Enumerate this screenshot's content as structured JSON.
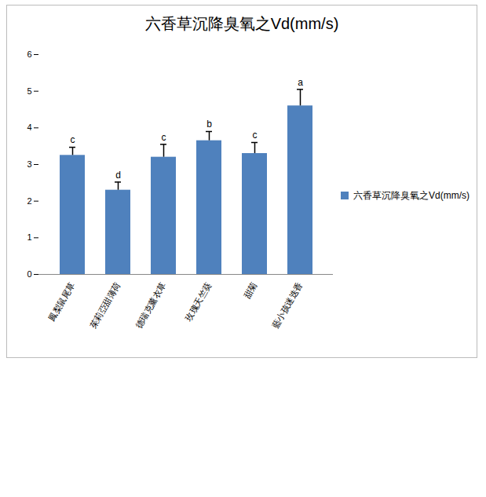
{
  "chart_data": {
    "type": "bar",
    "title": "六香草沉降臭氧之Vd(mm/s)",
    "categories": [
      "鳳梨鼠尾草",
      "茱莉亞甜薄荷",
      "德瑞克薰衣草",
      "玫瑰天竺葵",
      "甜菊",
      "藍小孩迷迭香"
    ],
    "series": [
      {
        "name": "六香草沉降臭氧之Vd(mm/s)",
        "color": "#4f81bd",
        "values": [
          3.25,
          2.3,
          3.2,
          3.65,
          3.3,
          4.6
        ],
        "errors": [
          0.22,
          0.22,
          0.35,
          0.25,
          0.3,
          0.45
        ],
        "significance_labels": [
          "c",
          "d",
          "c",
          "b",
          "c",
          "a"
        ]
      }
    ],
    "ylim": [
      0,
      6
    ],
    "yticks": [
      0,
      1,
      2,
      3,
      4,
      5,
      6
    ],
    "grid": false,
    "legend": "right"
  }
}
